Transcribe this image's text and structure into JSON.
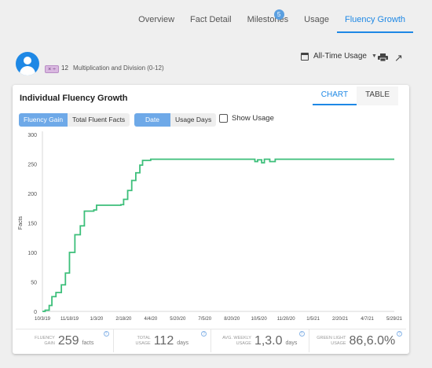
{
  "nav": {
    "tabs": [
      {
        "label": "Overview"
      },
      {
        "label": "Fact Detail"
      },
      {
        "label": "Milestones",
        "badge": "5"
      },
      {
        "label": "Usage"
      },
      {
        "label": "Fluency Growth",
        "active": true
      }
    ]
  },
  "header": {
    "ops_symbol": "× ÷",
    "level_number": "12",
    "level_name": "Multiplication and Division (0-12)",
    "range_label": "All-Time Usage",
    "icons": [
      "calendar-icon",
      "print-icon",
      "expand-icon"
    ]
  },
  "card": {
    "title": "Individual Fluency Growth",
    "view_tabs": [
      {
        "label": "CHART",
        "active": true
      },
      {
        "label": "TABLE"
      }
    ],
    "metric_toggle": [
      {
        "label": "Fluency Gain",
        "active": true
      },
      {
        "label": "Total Fluent Facts"
      }
    ],
    "axis_toggle": [
      {
        "label": "Date",
        "active": true
      },
      {
        "label": "Usage Days"
      }
    ],
    "show_usage_label": "Show Usage"
  },
  "chart_data": {
    "type": "line",
    "ylabel": "Facts",
    "xlabel": "",
    "ylim": [
      0,
      300
    ],
    "y_ticks": [
      0,
      50,
      100,
      150,
      200,
      250,
      300
    ],
    "x_ticks": [
      "10/3/19",
      "11/18/19",
      "1/3/20",
      "2/18/20",
      "4/4/20",
      "5/20/20",
      "7/5/20",
      "8/20/20",
      "10/5/20",
      "11/20/20",
      "1/5/21",
      "2/20/21",
      "4/7/21",
      "5/29/21"
    ],
    "line_color": "#3cbf7a",
    "series": [
      {
        "values_by_tick_index": [
          [
            0,
            0
          ],
          [
            0.1,
            2
          ],
          [
            0.25,
            10
          ],
          [
            0.35,
            25
          ],
          [
            0.5,
            32
          ],
          [
            0.7,
            45
          ],
          [
            0.85,
            65
          ],
          [
            1.0,
            100
          ],
          [
            1.2,
            130
          ],
          [
            1.4,
            145
          ],
          [
            1.55,
            170
          ],
          [
            1.9,
            172
          ],
          [
            2.0,
            180
          ],
          [
            2.5,
            180
          ],
          [
            2.9,
            181
          ],
          [
            3.0,
            190
          ],
          [
            3.15,
            205
          ],
          [
            3.3,
            222
          ],
          [
            3.45,
            235
          ],
          [
            3.6,
            248
          ],
          [
            3.7,
            256
          ],
          [
            4.0,
            258
          ],
          [
            5.0,
            258
          ],
          [
            6.0,
            258
          ],
          [
            7.0,
            258
          ],
          [
            7.8,
            258
          ],
          [
            7.85,
            254
          ],
          [
            7.95,
            257
          ],
          [
            8.1,
            252
          ],
          [
            8.2,
            258
          ],
          [
            8.4,
            254
          ],
          [
            8.6,
            258
          ],
          [
            9.0,
            258
          ],
          [
            10.0,
            258
          ],
          [
            11.0,
            258
          ],
          [
            12.0,
            258
          ],
          [
            13.0,
            258
          ]
        ]
      }
    ]
  },
  "stats": [
    {
      "label_line1": "FLUENCY",
      "label_line2": "GAIN",
      "value": "259",
      "unit": "facts"
    },
    {
      "label_line1": "TOTAL",
      "label_line2": "USAGE",
      "value": "112",
      "unit": "days"
    },
    {
      "label_line1": "AVG. WEEKLY",
      "label_line2": "USAGE",
      "value": "1,3.0",
      "unit": "days"
    },
    {
      "label_line1": "GREEN LIGHT",
      "label_line2": "USAGE",
      "value": "86,6.0%",
      "unit": ""
    }
  ]
}
